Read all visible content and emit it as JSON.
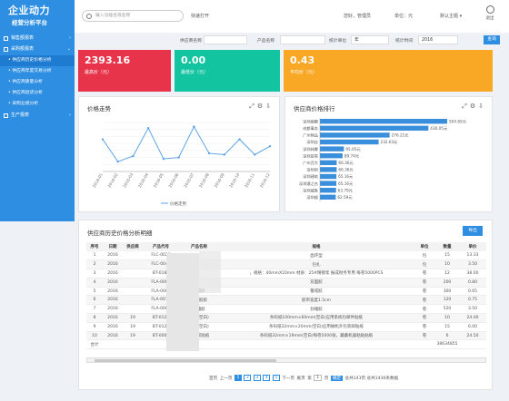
{
  "brand": {
    "title": "企业动力",
    "subtitle": "经营分析平台"
  },
  "sidebar": {
    "menu1": "销售额报表",
    "menu2": "采购额报表",
    "items": [
      "供应商历史价格分析",
      "供应商年度交易分析",
      "供应商质量分析",
      "供应商退货分析",
      "采购业绩分析"
    ],
    "menu3": "生产报表"
  },
  "topbar": {
    "search_placeholder": "输入功能名或名称",
    "quick": "快速打开",
    "user": "您好，管理员",
    "unit": "单位：元",
    "theme": "默认主题",
    "exit": "退出"
  },
  "filters": {
    "supplier_label": "供应商名称",
    "product_label": "产品名称",
    "stat_unit_label": "统计单位",
    "stat_unit_value": "年",
    "stat_time_label": "统计时间",
    "stat_time_value": "2016",
    "query": "查询"
  },
  "kpis": [
    {
      "value": "2393.16",
      "label": "最高价（元）",
      "color": "#e8344a"
    },
    {
      "value": "0.00",
      "label": "最低价（元）",
      "color": "#13c4a0"
    },
    {
      "value": "0.43",
      "label": "平均价（元）",
      "color": "#f9a825"
    }
  ],
  "trend": {
    "title": "价格走势",
    "legend": "价格走势"
  },
  "rank": {
    "title": "供应商价格排行"
  },
  "chart_data": [
    {
      "type": "line",
      "title": "价格走势",
      "x": [
        "2016-01",
        "2016-02",
        "2016-03",
        "2016-04",
        "2016-05",
        "2016-06",
        "2016-07",
        "2016-08",
        "2016-09",
        "2016-10",
        "2016-11",
        "2016-12"
      ],
      "series": [
        {
          "name": "价格走势",
          "values": [
            2.3,
            0.7,
            1.1,
            3.1,
            0.9,
            1.0,
            3.2,
            1.3,
            1.2,
            2.3,
            1.2,
            1.8
          ]
        }
      ]
    },
    {
      "type": "bar",
      "title": "供应商价格排行",
      "categories": [
        "深圳顺腾",
        "成都事务",
        "广州物品",
        "深圳丝",
        "深圳林霖",
        "深圳贸易",
        "广州百大",
        "深圳创",
        "深圳建筑",
        "深圳通之名",
        "深圳威胜",
        "深圳顺"
      ],
      "values": [
        504.65,
        430.05,
        276.21,
        232.63,
        95.05,
        89.74,
        66.36,
        66.36,
        65.16,
        65.16,
        63.79,
        62.59
      ],
      "labels": [
        "504.65元",
        "430.05元",
        "276.21元",
        "232.63元",
        "95.05元",
        "89.74元",
        "66.36元",
        "66.36元",
        "65.16元",
        "65.16元",
        "63.79元",
        "62.59元"
      ]
    }
  ],
  "history": {
    "title": "供应商历史价格分析明细",
    "export": "导出",
    "columns": [
      "序号",
      "日期",
      "供应商",
      "产品代号",
      "产品名称",
      "规格",
      "单位",
      "数量",
      "单价"
    ],
    "rows": [
      [
        "1",
        "2016",
        "",
        "FLC-0029",
        "",
        "齿环型",
        "包",
        "15",
        "13.33"
      ],
      [
        "2",
        "2016",
        "",
        "FLC-0044",
        "",
        "包扎",
        "包",
        "10",
        "3.50"
      ],
      [
        "3",
        "2016",
        "",
        "BT-0180",
        "",
        "，规格：40mmX10mm 材质：25#精镀浆 报成财务专用 每卷5000PCS",
        "卷",
        "12",
        "38.00"
      ],
      [
        "4",
        "2016",
        "",
        "FLA-0007",
        "",
        "双面胶",
        "卷",
        "200",
        "0.80"
      ],
      [
        "5",
        "2016",
        "",
        "FLA-0008",
        "警戒胶",
        "警戒胶",
        "卷",
        "300",
        "0.65"
      ],
      [
        "6",
        "2016",
        "",
        "FLA-0011",
        "透明胶胶",
        "胶带宽度1.5cm",
        "卷",
        "120",
        "0.75"
      ],
      [
        "7",
        "2016",
        "",
        "FLA-0006",
        "封箱胶",
        "封箱胶",
        "卷",
        "520",
        "3.50"
      ],
      [
        "8",
        "2016",
        "19",
        "BT-0121",
        "贴纸(空白)",
        "条码纸100mm×60mm(空白)应用系统包邮件贴纸",
        "卷",
        "10",
        "24.00"
      ],
      [
        "9",
        "2016",
        "19",
        "BT-0123",
        "纸纸(空白)",
        "条码纸32mm×20mm(空白)应用磁机外包装邮贴纸",
        "卷",
        "15",
        "6.00"
      ],
      [
        "10",
        "2016",
        "19",
        "BT-0007",
        "要授权贴纸",
        "条码纸32mm×19mm(空白)每卷5000张，藏藏机器粘贴贴纸",
        "卷",
        "6",
        "24.50"
      ]
    ],
    "total_label": "合计",
    "total_value": "38634855"
  },
  "pager": {
    "home": "首页",
    "prev": "上一页",
    "pages": [
      "1",
      "2",
      "3",
      "4",
      "5"
    ],
    "next": "下一页",
    "last": "尾页",
    "goto": "第",
    "goto_page": "1",
    "page_unit": "页",
    "go": "确定",
    "total": "总共143页  总共1430条数据"
  }
}
